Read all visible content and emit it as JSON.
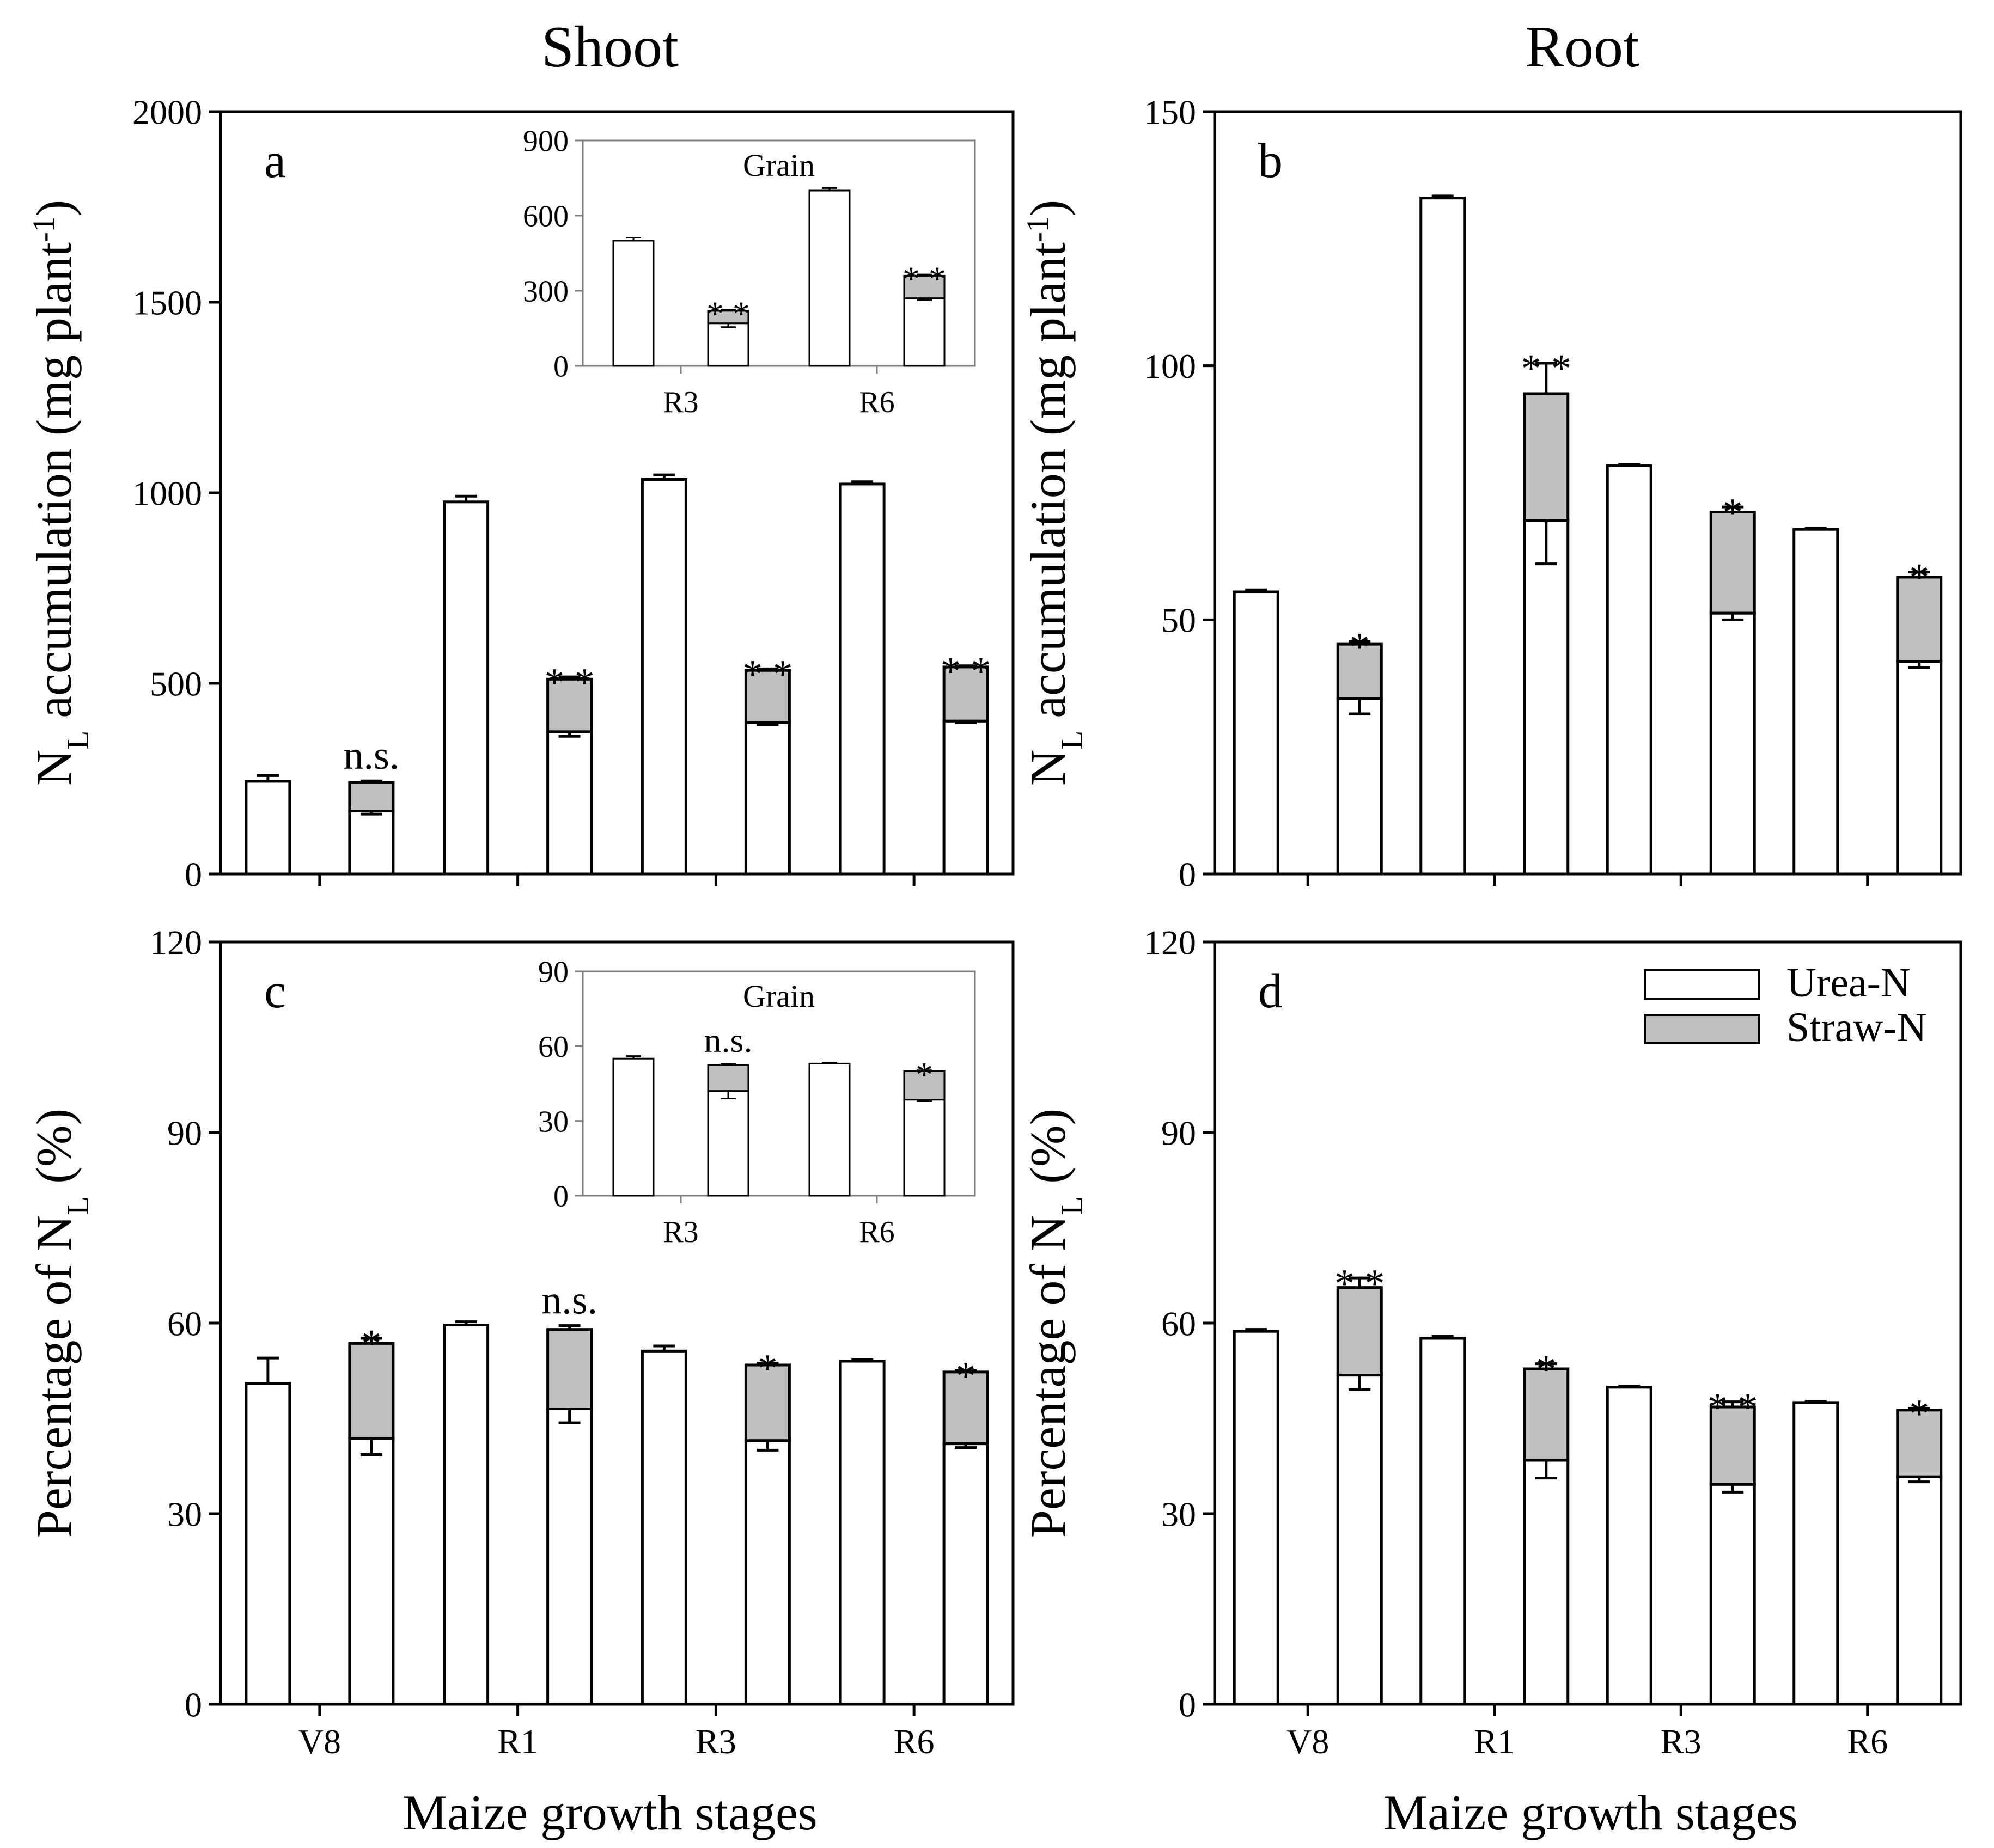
{
  "column_titles": {
    "left": "Shoot",
    "right": "Root"
  },
  "x_axis_label": "Maize growth stages",
  "legend": {
    "urea_label": "Urea-N",
    "straw_label": "Straw-N"
  },
  "colors": {
    "urea": "#ffffff",
    "straw": "#c0c0c0",
    "axis": "#000000",
    "inset_axis": "#808080"
  },
  "chart_data": [
    {
      "panel": "a",
      "type": "bar",
      "stacked": true,
      "ylabel": "N_L accumulation (mg plant^-1)",
      "ylim": [
        0,
        2000
      ],
      "yticks": [
        0,
        500,
        1000,
        1500,
        2000
      ],
      "categories": [
        "V8",
        "R1",
        "R3",
        "R6"
      ],
      "urea_treatment": {
        "values": [
          243,
          976,
          1035,
          1023
        ],
        "errors": [
          15,
          15,
          12,
          6
        ]
      },
      "straw_treatment": {
        "urea_n": [
          165,
          373,
          397,
          401
        ],
        "straw_n": [
          75,
          138,
          137,
          142
        ],
        "total_errors": [
          4,
          6,
          4,
          3
        ],
        "urea_n_errors": [
          8,
          12,
          5,
          4
        ]
      },
      "significance": [
        "n.s.",
        "**",
        "**",
        "**"
      ],
      "inset": {
        "title": "Grain",
        "categories": [
          "R3",
          "R6"
        ],
        "ylim": [
          0,
          900
        ],
        "yticks": [
          0,
          300,
          600,
          900
        ],
        "urea_treatment": {
          "values": [
            500,
            700
          ],
          "errors": [
            12,
            10
          ]
        },
        "straw_treatment": {
          "urea_n": [
            170,
            270
          ],
          "straw_n": [
            50,
            90
          ],
          "total_errors": [
            5,
            5
          ],
          "urea_n_errors": [
            15,
            8
          ]
        },
        "significance": [
          "**",
          "**"
        ]
      }
    },
    {
      "panel": "b",
      "type": "bar",
      "stacked": true,
      "ylabel": "N_L accumulation (mg plant^-1)",
      "ylim": [
        0,
        150
      ],
      "yticks": [
        0,
        50,
        100,
        150
      ],
      "categories": [
        "V8",
        "R1",
        "R3",
        "R6"
      ],
      "urea_treatment": {
        "values": [
          55.5,
          133,
          80.3,
          67.8
        ],
        "errors": [
          0.4,
          0.4,
          0.3,
          0.2
        ]
      },
      "straw_treatment": {
        "urea_n": [
          34.5,
          69.5,
          51.3,
          41.8
        ],
        "straw_n": [
          10.7,
          25,
          19.9,
          16.6
        ],
        "total_errors": [
          0.5,
          6,
          1,
          1
        ],
        "urea_n_errors": [
          3,
          8.5,
          1.3,
          1.2
        ]
      },
      "significance": [
        "*",
        "**",
        "*",
        "*"
      ]
    },
    {
      "panel": "c",
      "type": "bar",
      "stacked": true,
      "ylabel": "Percentage of N_L (%)",
      "ylim": [
        0,
        120
      ],
      "yticks": [
        0,
        30,
        60,
        90,
        120
      ],
      "categories": [
        "V8",
        "R1",
        "R3",
        "R6"
      ],
      "urea_treatment": {
        "values": [
          50.5,
          59.7,
          55.6,
          54
        ],
        "errors": [
          4,
          0.5,
          0.8,
          0.3
        ]
      },
      "straw_treatment": {
        "urea_n": [
          41.8,
          46.5,
          41.5,
          41
        ],
        "straw_n": [
          15,
          12.5,
          11.9,
          11.3
        ],
        "total_errors": [
          0.8,
          0.6,
          0.3,
          0.2
        ],
        "urea_n_errors": [
          2.5,
          2.2,
          1.5,
          0.6
        ]
      },
      "significance": [
        "*",
        "n.s.",
        "*",
        "*"
      ],
      "inset": {
        "title": "Grain",
        "categories": [
          "R3",
          "R6"
        ],
        "ylim": [
          0,
          90
        ],
        "yticks": [
          0,
          30,
          60,
          90
        ],
        "urea_treatment": {
          "values": [
            55,
            53
          ],
          "errors": [
            1,
            0.3
          ]
        },
        "straw_treatment": {
          "urea_n": [
            42,
            38.5
          ],
          "straw_n": [
            10.5,
            11.5
          ],
          "total_errors": [
            0.4,
            0.3
          ],
          "urea_n_errors": [
            3,
            0.5
          ]
        },
        "significance": [
          "n.s.",
          "*"
        ]
      }
    },
    {
      "panel": "d",
      "type": "bar",
      "stacked": true,
      "ylabel": "Percentage of N_L (%)",
      "ylim": [
        0,
        120
      ],
      "yticks": [
        0,
        30,
        60,
        90,
        120
      ],
      "categories": [
        "V8",
        "R1",
        "R3",
        "R6"
      ],
      "urea_treatment": {
        "values": [
          58.7,
          57.6,
          49.9,
          47.5
        ],
        "errors": [
          0.3,
          0.3,
          0.2,
          0.2
        ]
      },
      "straw_treatment": {
        "urea_n": [
          51.8,
          38.4,
          34.6,
          35.8
        ],
        "straw_n": [
          13.8,
          14.4,
          12.2,
          10.5
        ],
        "total_errors": [
          1.5,
          0.8,
          0.8,
          0.3
        ],
        "urea_n_errors": [
          2.3,
          2.8,
          1.2,
          0.8
        ]
      },
      "significance": [
        "**",
        "*",
        "**",
        "*"
      ]
    }
  ]
}
